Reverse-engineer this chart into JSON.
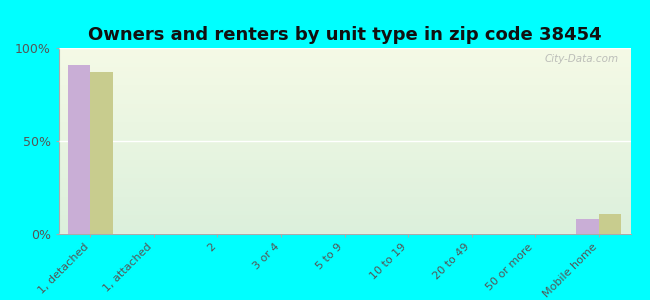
{
  "title": "Owners and renters by unit type in zip code 38454",
  "categories": [
    "1, detached",
    "1, attached",
    "2",
    "3 or 4",
    "5 to 9",
    "10 to 19",
    "20 to 49",
    "50 or more",
    "Mobile home"
  ],
  "owner_values": [
    91,
    0,
    0,
    0,
    0,
    0,
    0,
    0,
    8
  ],
  "renter_values": [
    87,
    0,
    0,
    0,
    0,
    0,
    0,
    0,
    11
  ],
  "owner_color": "#c9aed6",
  "renter_color": "#c8cc8e",
  "bar_width": 0.35,
  "ylim": [
    0,
    100
  ],
  "yticks": [
    0,
    50,
    100
  ],
  "ytick_labels": [
    "0%",
    "50%",
    "100%"
  ],
  "background_color": "#00ffff",
  "title_fontsize": 13,
  "watermark": "City-Data.com"
}
